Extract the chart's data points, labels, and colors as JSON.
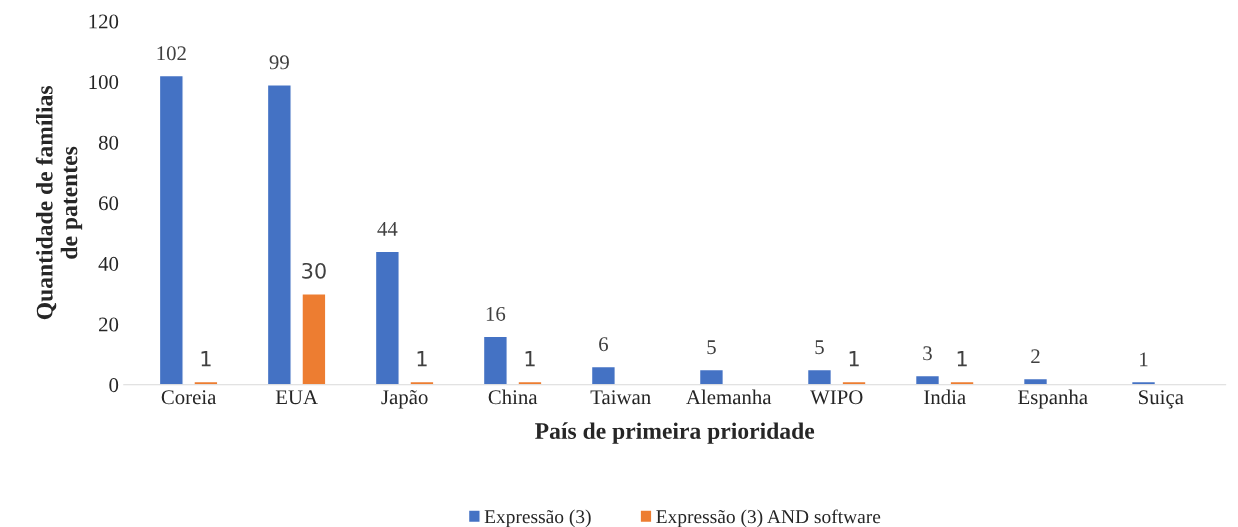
{
  "chart_data": {
    "type": "bar",
    "xlabel": "País de primeira prioridade",
    "ylabel": "Quantidade de famílias\nde patentes",
    "categories": [
      "Coreia",
      "EUA",
      "Japão",
      "China",
      "Taiwan",
      "Alemanha",
      "WIPO",
      "India",
      "Espanha",
      "Suiça"
    ],
    "series": [
      {
        "name": "Expressão (3)",
        "color": "#4472c4",
        "values": [
          102,
          99,
          44,
          16,
          6,
          5,
          5,
          3,
          2,
          1
        ]
      },
      {
        "name": "Expressão (3) AND software",
        "color": "#ed7d31",
        "values": [
          1,
          30,
          1,
          1,
          null,
          null,
          1,
          1,
          null,
          null
        ]
      }
    ],
    "ylim": [
      0,
      120
    ],
    "yticks": [
      0,
      20,
      40,
      60,
      80,
      100,
      120
    ],
    "data_labels": true,
    "grid": false,
    "legend": "bottom"
  }
}
